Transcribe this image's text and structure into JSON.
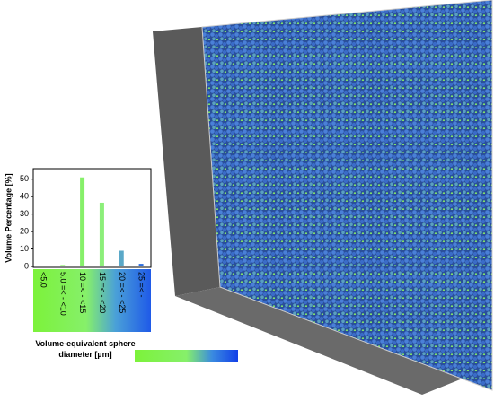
{
  "chart_data": {
    "type": "bar",
    "y_label": "Volume Percentage [%]",
    "categories": [
      "<5.0",
      "5.0 =< - <10",
      "10 =< - <15",
      "15 =< - <20",
      "20 =< - <25",
      "25 =< -"
    ],
    "values": [
      0.2,
      0.8,
      51,
      36.5,
      9,
      1.5
    ],
    "colors": [
      "#7cf25a",
      "#7cf25a",
      "#86f06a",
      "#8cef7a",
      "#5aa8c8",
      "#2f6fe0"
    ],
    "ylim": [
      0,
      56
    ],
    "yticks": [
      0,
      10,
      20,
      30,
      40,
      50
    ],
    "colorbar_label": [
      "Volume-equivalent sphere",
      "diameter [µm]"
    ]
  }
}
